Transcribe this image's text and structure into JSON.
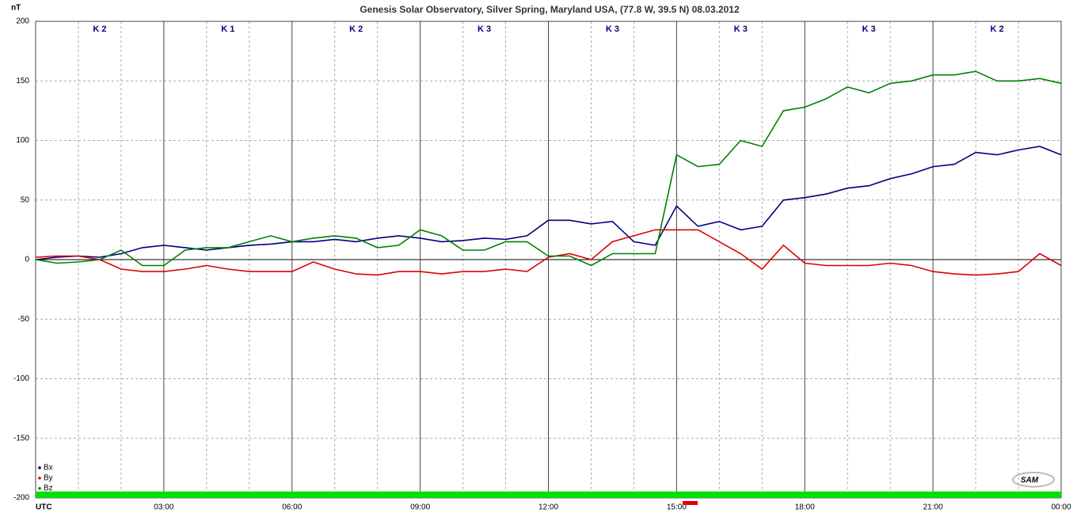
{
  "chart_data": {
    "type": "line",
    "title": "Genesis Solar Observatory, Silver Spring, Maryland USA, (77.8 W, 39.5 N)  08.03.2012",
    "y_label": "nT",
    "logo": "SAM",
    "annotations": [
      "K 2",
      "K 1",
      "K 2",
      "K 3",
      "K 3",
      "K 3",
      "K 3",
      "K 2"
    ],
    "x": [
      0,
      0.5,
      1,
      1.5,
      2,
      2.5,
      3,
      3.5,
      4,
      4.5,
      5,
      5.5,
      6,
      6.5,
      7,
      7.5,
      8,
      8.5,
      9,
      9.5,
      10,
      10.5,
      11,
      11.5,
      12,
      12.5,
      13,
      13.5,
      14,
      14.5,
      15,
      15.5,
      16,
      16.5,
      17,
      17.5,
      18,
      18.5,
      19,
      19.5,
      20,
      20.5,
      21,
      21.5,
      22,
      22.5,
      23,
      23.5,
      24
    ],
    "series": [
      {
        "name": "Bx",
        "color": "#000080",
        "values": [
          0,
          2,
          3,
          2,
          5,
          10,
          12,
          10,
          8,
          10,
          12,
          13,
          15,
          15,
          17,
          15,
          18,
          20,
          18,
          15,
          16,
          18,
          17,
          20,
          33,
          33,
          30,
          32,
          15,
          12,
          45,
          28,
          32,
          25,
          28,
          50,
          52,
          55,
          60,
          62,
          68,
          72,
          78,
          80,
          90,
          88,
          92,
          95,
          88
        ]
      },
      {
        "name": "By",
        "color": "#e00000",
        "values": [
          2,
          3,
          3,
          0,
          -8,
          -10,
          -10,
          -8,
          -5,
          -8,
          -10,
          -10,
          -10,
          -2,
          -8,
          -12,
          -13,
          -10,
          -10,
          -12,
          -10,
          -10,
          -8,
          -10,
          2,
          5,
          0,
          15,
          20,
          25,
          25,
          25,
          15,
          5,
          -8,
          12,
          -3,
          -5,
          -5,
          -5,
          -3,
          -5,
          -10,
          -12,
          -13,
          -12,
          -10,
          5,
          -5
        ]
      },
      {
        "name": "Bz",
        "color": "#008000",
        "values": [
          0,
          -3,
          -2,
          0,
          8,
          -5,
          -5,
          8,
          10,
          10,
          15,
          20,
          15,
          18,
          20,
          18,
          10,
          12,
          25,
          20,
          8,
          8,
          15,
          15,
          3,
          3,
          -5,
          5,
          5,
          5,
          88,
          78,
          80,
          100,
          95,
          125,
          128,
          135,
          145,
          140,
          148,
          150,
          155,
          155,
          158,
          150,
          150,
          152,
          148
        ]
      }
    ],
    "xlim": [
      0,
      24
    ],
    "xticks": [
      {
        "value": 0,
        "label": "UTC"
      },
      {
        "value": 3,
        "label": "03:00"
      },
      {
        "value": 6,
        "label": "06:00"
      },
      {
        "value": 9,
        "label": "09:00"
      },
      {
        "value": 12,
        "label": "12:00"
      },
      {
        "value": 15,
        "label": "15:00"
      },
      {
        "value": 18,
        "label": "18:00"
      },
      {
        "value": 21,
        "label": "21:00"
      },
      {
        "value": 24,
        "label": "00:00"
      }
    ],
    "ylim": [
      -200,
      200
    ],
    "yticks": [
      -200,
      -150,
      -100,
      -50,
      0,
      50,
      100,
      150,
      200
    ],
    "grid": true,
    "legend": "bottom-left"
  }
}
